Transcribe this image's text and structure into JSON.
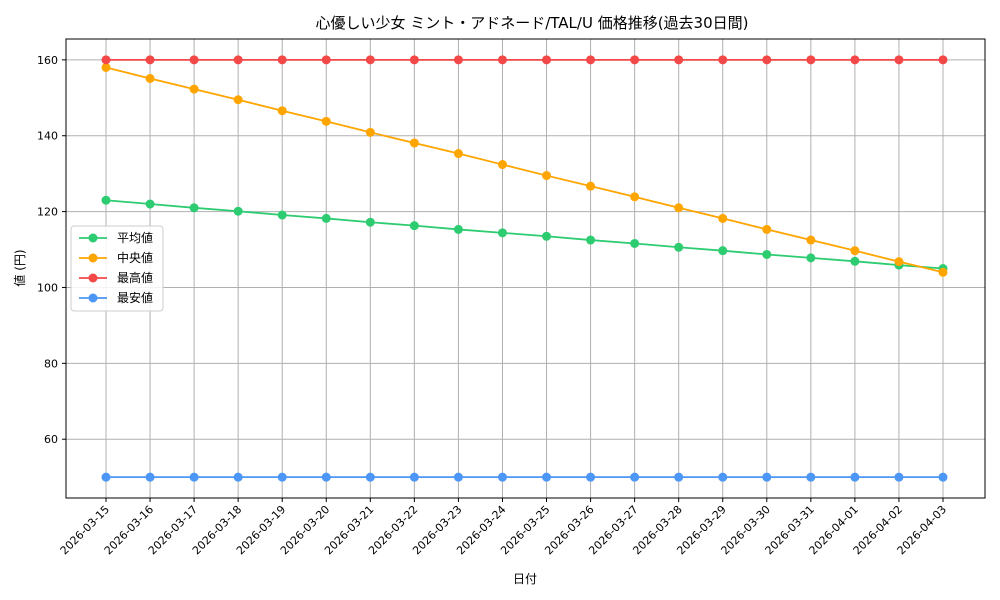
{
  "chart_data": {
    "type": "line",
    "title": "心優しい少女 ミント・アドネード/TAL/U 価格推移(過去30日間)",
    "xlabel": "日付",
    "ylabel": "値 (円)",
    "ylim": [
      44.5,
      165.5
    ],
    "yticks": [
      60,
      80,
      100,
      120,
      140,
      160
    ],
    "grid": true,
    "legend_position": "center-left",
    "categories": [
      "2026-03-15",
      "2026-03-16",
      "2026-03-17",
      "2026-03-18",
      "2026-03-19",
      "2026-03-20",
      "2026-03-21",
      "2026-03-22",
      "2026-03-23",
      "2026-03-24",
      "2026-03-25",
      "2026-03-26",
      "2026-03-27",
      "2026-03-28",
      "2026-03-29",
      "2026-03-30",
      "2026-03-31",
      "2026-04-01",
      "2026-04-02",
      "2026-04-03"
    ],
    "series": [
      {
        "name": "平均値",
        "color": "#2ecc71",
        "values": [
          123,
          122,
          121,
          120.1,
          119.1,
          118.2,
          117.2,
          116.3,
          115.3,
          114.4,
          113.5,
          112.5,
          111.6,
          110.6,
          109.7,
          108.7,
          107.8,
          106.9,
          105.9,
          105
        ]
      },
      {
        "name": "中央値",
        "color": "#ffa500",
        "values": [
          158,
          155.1,
          152.3,
          149.5,
          146.6,
          143.8,
          140.9,
          138.1,
          135.3,
          132.4,
          129.5,
          126.7,
          123.9,
          121,
          118.2,
          115.3,
          112.5,
          109.7,
          106.8,
          104
        ]
      },
      {
        "name": "最高値",
        "color": "#f24848",
        "values": [
          160,
          160,
          160,
          160,
          160,
          160,
          160,
          160,
          160,
          160,
          160,
          160,
          160,
          160,
          160,
          160,
          160,
          160,
          160,
          160
        ]
      },
      {
        "name": "最安値",
        "color": "#4c96f5",
        "values": [
          50,
          50,
          50,
          50,
          50,
          50,
          50,
          50,
          50,
          50,
          50,
          50,
          50,
          50,
          50,
          50,
          50,
          50,
          50,
          50
        ]
      }
    ]
  }
}
